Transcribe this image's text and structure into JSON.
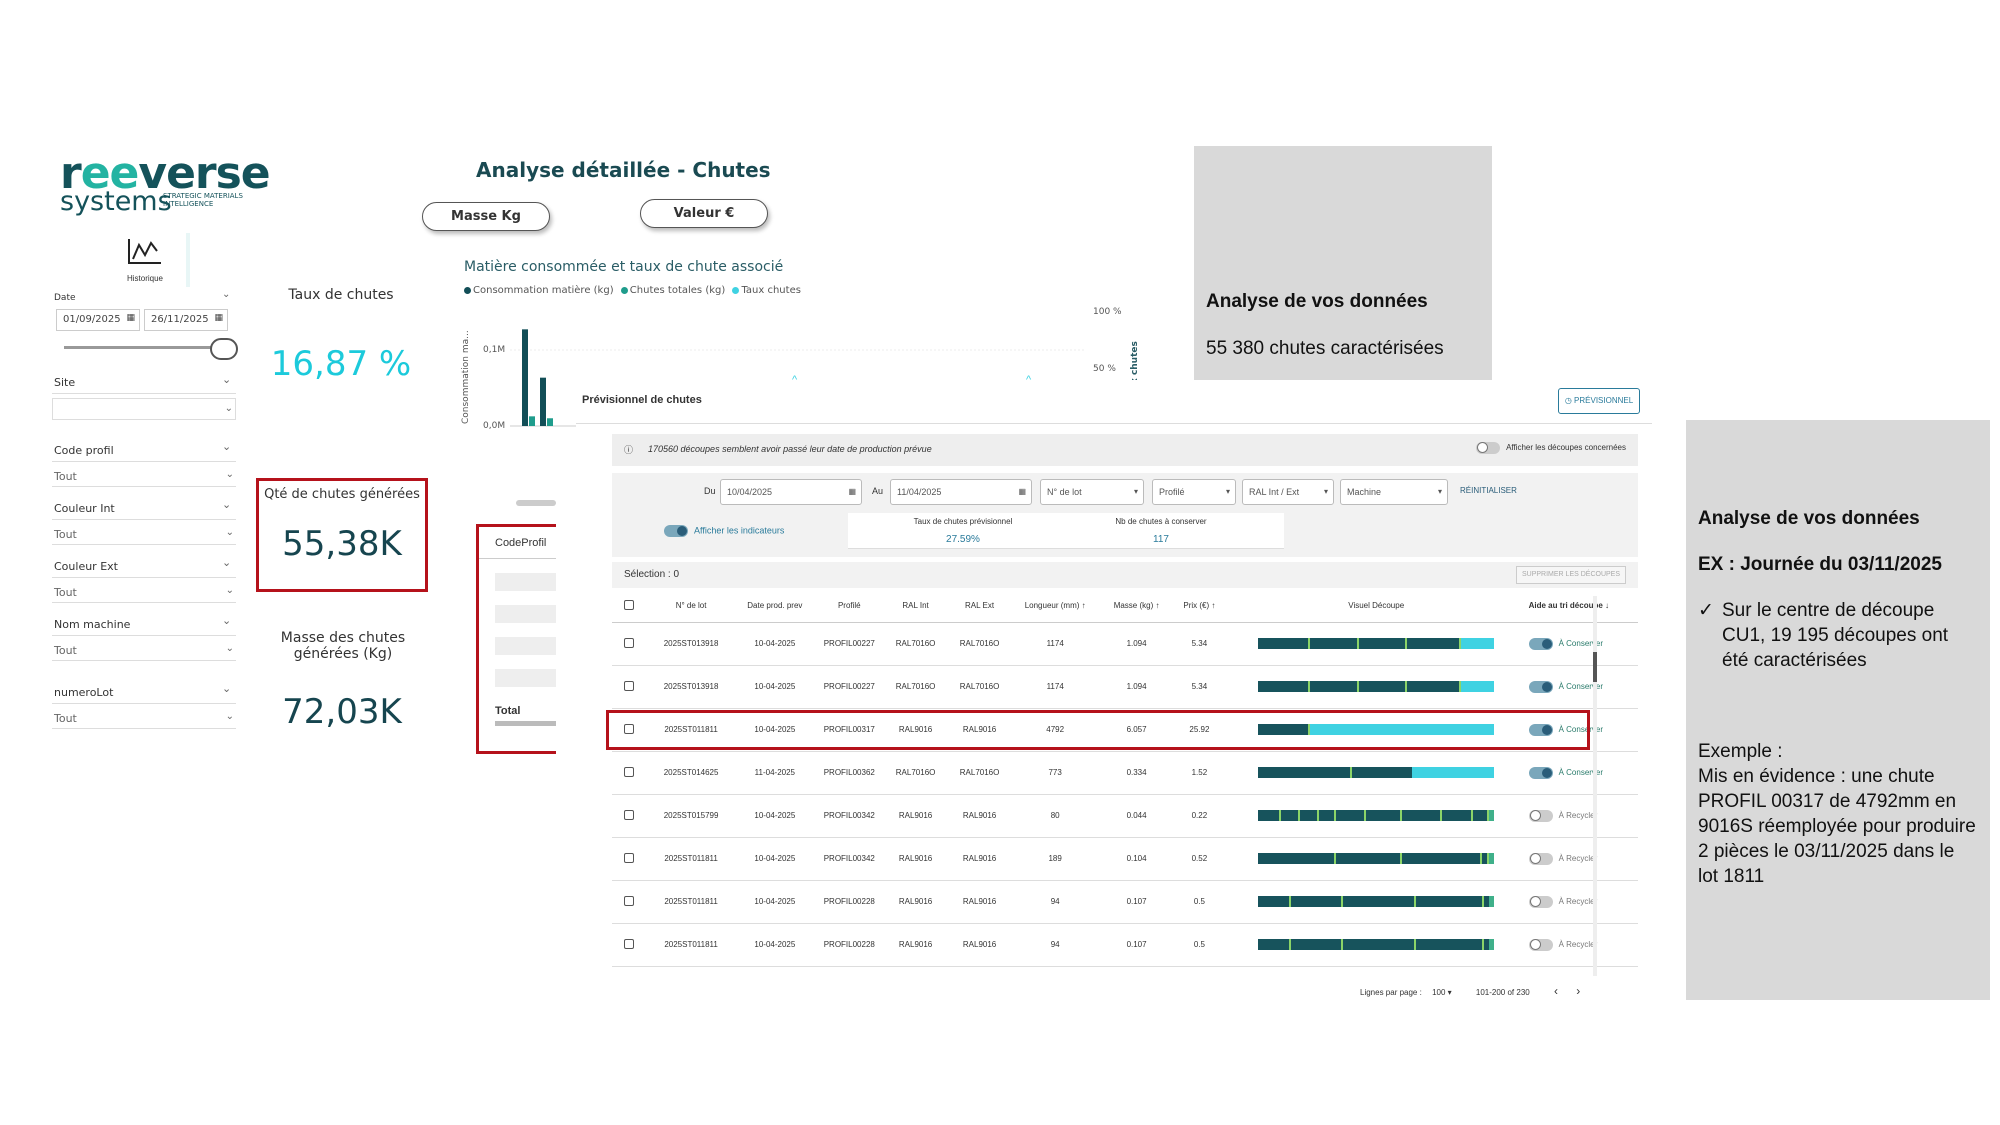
{
  "logo": {
    "brand_pre": "r",
    "brand_ee": "ee",
    "brand_post": "verse",
    "sub": "systems",
    "tagline": "STRATEGIC MATERIALS INTELLIGENCE"
  },
  "historique": {
    "label": "Historique",
    "icon": "line-chart-icon"
  },
  "filters": {
    "date": {
      "label": "Date",
      "from": "01/09/2025",
      "to": "26/11/2025"
    },
    "site": {
      "label": "Site",
      "value": ""
    },
    "code_profil": {
      "label": "Code profil",
      "value": "Tout"
    },
    "couleur_int": {
      "label": "Couleur Int",
      "value": "Tout"
    },
    "couleur_ext": {
      "label": "Couleur Ext",
      "value": "Tout"
    },
    "nom_machine": {
      "label": "Nom machine",
      "value": "Tout"
    },
    "numero_lot": {
      "label": "numeroLot",
      "value": "Tout"
    }
  },
  "kpis": {
    "taux": {
      "title": "Taux de chutes",
      "value": "16,87 %"
    },
    "qte": {
      "title": "Qté de chutes générées",
      "value": "55,38K"
    },
    "masse": {
      "title": "Masse des chutes générées (Kg)",
      "value": "72,03K"
    }
  },
  "header": {
    "title": "Analyse détaillée - Chutes",
    "btn_masse": "Masse Kg",
    "btn_valeur": "Valeur €"
  },
  "chart": {
    "title": "Matière consommée et taux de chute associé",
    "legend": [
      "Consommation matière (kg)",
      "Chutes totales (kg)",
      "Taux chutes"
    ],
    "ylabel": "Consommation ma...",
    "y2label": "x chutes",
    "yticks": [
      "0,1M",
      "0,0M"
    ],
    "y2ticks": [
      "100 %",
      "50 %"
    ],
    "colors": {
      "conso": "#124e57",
      "chutes": "#1f9c8c",
      "taux": "#3fd2e2"
    }
  },
  "chart_data": {
    "type": "bar",
    "title": "Matière consommée et taux de chute associé",
    "series": [
      {
        "name": "Consommation matière (kg)",
        "values": [
          0.1,
          0.05
        ]
      },
      {
        "name": "Chutes totales (kg)",
        "values": [
          0.01,
          0.008
        ]
      }
    ],
    "ylabel": "Consommation ma...",
    "ylim": [
      0,
      0.12
    ]
  },
  "table_partial": {
    "header": "CodeProfil",
    "total": "Total"
  },
  "info_top": {
    "title": "Analyse de vos données",
    "text": "55 380 chutes caractérisées"
  },
  "info_right": {
    "title": "Analyse de vos données",
    "subtitle": "EX : Journée du 03/11/2025",
    "bullet_mark": "✓",
    "bullet": "Sur le centre de découpe CU1, 19 195 découpes ont été caractérisées",
    "example_title": "Exemple :",
    "example_text": "Mis en évidence : une chute PROFIL 00317 de 4792mm en 9016S réemployée pour produire 2 pièces le 03/11/2025 dans le lot 1811"
  },
  "app": {
    "title": "Prévisionnel de chutes",
    "btn_previsionnel": "PRÉVISIONNEL",
    "notice": "170560 découpes semblent avoir passé leur date de production prévue",
    "notice_toggle": "Afficher les découpes concernées",
    "du_label": "Du",
    "du_value": "10/04/2025",
    "au_label": "Au",
    "au_value": "11/04/2025",
    "f_lot": "N° de lot",
    "f_profile": "Profilé",
    "f_ral": "RAL Int / Ext",
    "f_machine": "Machine",
    "reset": "RÉINITIALISER",
    "indicators_toggle": "Afficher les indicateurs",
    "taux_prev_label": "Taux de chutes prévisionnel",
    "taux_prev_value": "27.59%",
    "nb_conserver_label": "Nb de chutes à conserver",
    "nb_conserver_value": "117",
    "selection": "Sélection : 0",
    "delete_btn": "SUPPRIMER LES DÉCOUPES",
    "columns": [
      "N° de lot",
      "Date prod. prev",
      "Profilé",
      "RAL Int",
      "RAL Ext",
      "Longueur (mm) ↑",
      "Masse (kg) ↑",
      "Prix (€) ↑",
      "Visuel Découpe",
      "Aide au tri découpe ↓"
    ],
    "rows": [
      {
        "lot": "2025ST013918",
        "date": "10-04-2025",
        "profile": "PROFIL00227",
        "ral_int": "RAL7016O",
        "ral_ext": "RAL7016O",
        "length": "1174",
        "mass": "1.094",
        "price": "5.34",
        "decision": "À Conserver",
        "keep": true,
        "waste": 0.14,
        "ticks": [
          0.21,
          0.42,
          0.62,
          0.85
        ]
      },
      {
        "lot": "2025ST013918",
        "date": "10-04-2025",
        "profile": "PROFIL00227",
        "ral_int": "RAL7016O",
        "ral_ext": "RAL7016O",
        "length": "1174",
        "mass": "1.094",
        "price": "5.34",
        "decision": "À Conserver",
        "keep": true,
        "waste": 0.14,
        "ticks": [
          0.21,
          0.42,
          0.62,
          0.85
        ]
      },
      {
        "lot": "2025ST011811",
        "date": "10-04-2025",
        "profile": "PROFIL00317",
        "ral_int": "RAL9016",
        "ral_ext": "RAL9016",
        "length": "4792",
        "mass": "6.057",
        "price": "25.92",
        "decision": "À Conserver",
        "keep": true,
        "waste": 0.78,
        "ticks": [
          0.21
        ]
      },
      {
        "lot": "2025ST014625",
        "date": "11-04-2025",
        "profile": "PROFIL00362",
        "ral_int": "RAL7016O",
        "ral_ext": "RAL7016O",
        "length": "773",
        "mass": "0.334",
        "price": "1.52",
        "decision": "À Conserver",
        "keep": true,
        "waste": 0.35,
        "ticks": [
          0.39
        ]
      },
      {
        "lot": "2025ST015799",
        "date": "10-04-2025",
        "profile": "PROFIL00342",
        "ral_int": "RAL9016",
        "ral_ext": "RAL9016",
        "length": "80",
        "mass": "0.044",
        "price": "0.22",
        "decision": "À Recycler",
        "keep": false,
        "waste": 0.02,
        "ticks": [
          0.09,
          0.17,
          0.25,
          0.32,
          0.45,
          0.6,
          0.77,
          0.9,
          0.97
        ]
      },
      {
        "lot": "2025ST011811",
        "date": "10-04-2025",
        "profile": "PROFIL00342",
        "ral_int": "RAL9016",
        "ral_ext": "RAL9016",
        "length": "189",
        "mass": "0.104",
        "price": "0.52",
        "decision": "À Recycler",
        "keep": false,
        "waste": 0.03,
        "ticks": [
          0.32,
          0.6,
          0.94,
          0.97
        ]
      },
      {
        "lot": "2025ST011811",
        "date": "10-04-2025",
        "profile": "PROFIL00228",
        "ral_int": "RAL9016",
        "ral_ext": "RAL9016",
        "length": "94",
        "mass": "0.107",
        "price": "0.5",
        "decision": "À Recycler",
        "keep": false,
        "waste": 0.02,
        "ticks": [
          0.13,
          0.35,
          0.66,
          0.95
        ]
      },
      {
        "lot": "2025ST011811",
        "date": "10-04-2025",
        "profile": "PROFIL00228",
        "ral_int": "RAL9016",
        "ral_ext": "RAL9016",
        "length": "94",
        "mass": "0.107",
        "price": "0.5",
        "decision": "À Recycler",
        "keep": false,
        "waste": 0.02,
        "ticks": [
          0.13,
          0.35,
          0.66,
          0.95
        ]
      }
    ],
    "rows_per_page_label": "Lignes par page :",
    "rows_per_page": "100 ▾",
    "range": "101-200 of 230",
    "prev": "‹",
    "next": "›"
  }
}
